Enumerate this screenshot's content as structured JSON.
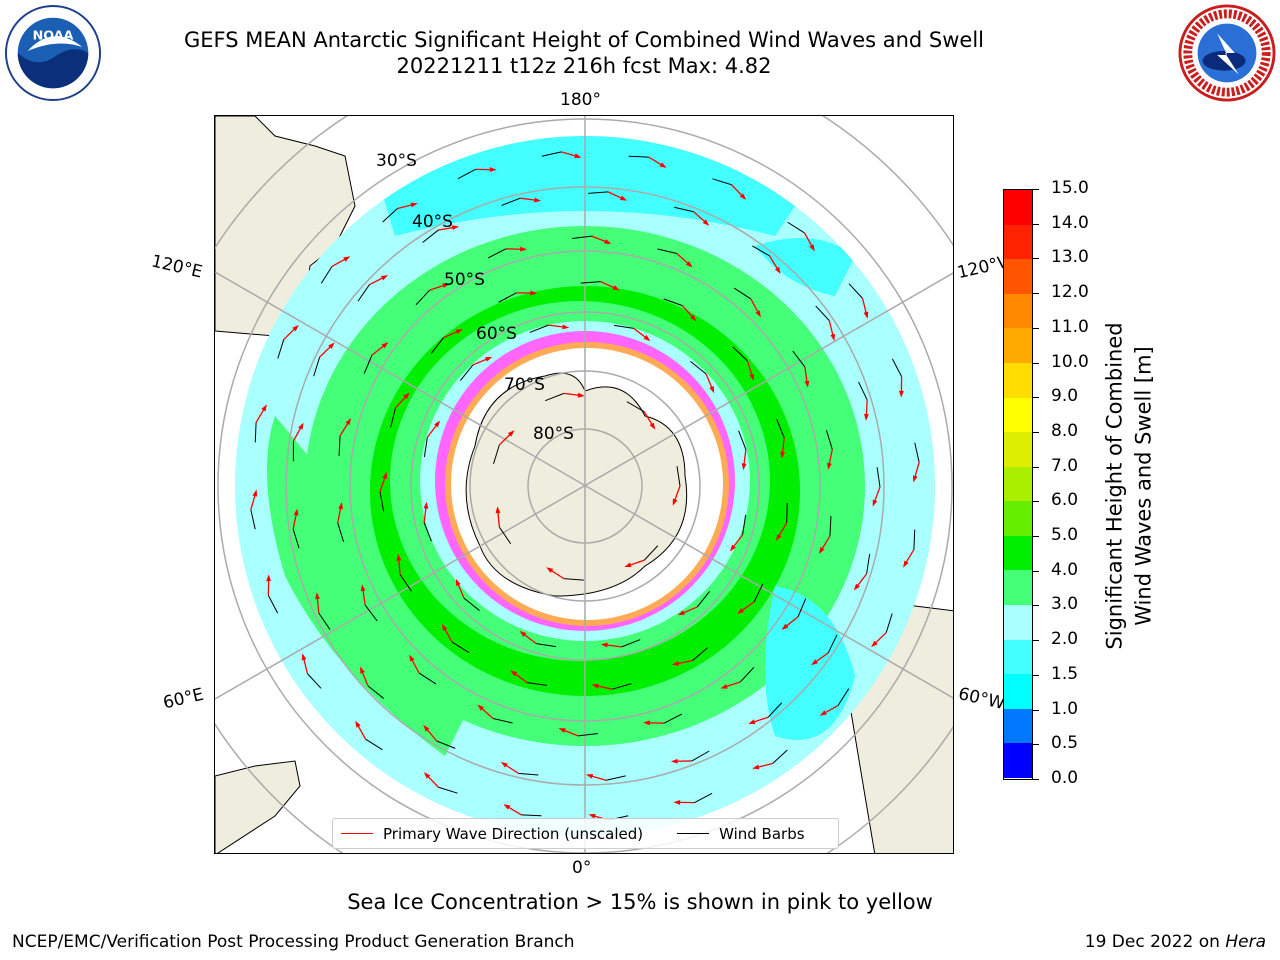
{
  "title_line1": "GEFS MEAN Antarctic Significant Height of Combined Wind Waves and Swell",
  "title_line2": "20221211 t12z 216h fcst   Max: 4.82",
  "logos": {
    "left": "NOAA",
    "right": "NATIONAL WEATHER SERVICE"
  },
  "longitude_labels": {
    "top": "180°",
    "bottom": "0°",
    "upper_left": "120°E",
    "upper_right": "120°W",
    "lower_left": "60°E",
    "lower_right": "60°W"
  },
  "latitude_labels": [
    "30°S",
    "40°S",
    "50°S",
    "60°S",
    "70°S",
    "80°S"
  ],
  "legend": [
    {
      "label": "Primary Wave Direction (unscaled)",
      "color": "#ff0000"
    },
    {
      "label": "Wind Barbs",
      "color": "#000000"
    }
  ],
  "colorbar": {
    "label_line1": "Significant Height of Combined",
    "label_line2": "Wind Waves and Swell [m]",
    "ticks": [
      "0.0",
      "0.5",
      "1.0",
      "1.5",
      "2.0",
      "3.0",
      "4.0",
      "5.0",
      "6.0",
      "7.0",
      "8.0",
      "9.0",
      "10.0",
      "11.0",
      "12.0",
      "13.0",
      "14.0",
      "15.0"
    ],
    "colors": [
      "#0000ff",
      "#0077ff",
      "#00ffff",
      "#44ffff",
      "#aaffff",
      "#44ff77",
      "#00ee00",
      "#66ee00",
      "#aaee00",
      "#ddee00",
      "#ffff00",
      "#ffdd00",
      "#ffaa00",
      "#ff8800",
      "#ff5500",
      "#ff2200",
      "#ff0000"
    ]
  },
  "subtitle": "Sea Ice Concentration > 15% is shown in pink to yellow",
  "footer_left": "NCEP/EMC/Verification Post Processing Product Generation Branch",
  "footer_right_date": "19 Dec 2022 on ",
  "footer_right_host": "Hera",
  "chart_data": {
    "type": "heatmap",
    "title": "GEFS MEAN Antarctic Significant Height of Combined Wind Waves and Swell",
    "projection": "south polar stereographic",
    "max_value": 4.82,
    "units": "m",
    "value_range": [
      0.0,
      15.0
    ],
    "contour_levels": [
      0.0,
      0.5,
      1.0,
      1.5,
      2.0,
      3.0,
      4.0,
      5.0,
      6.0,
      7.0,
      8.0,
      9.0,
      10.0,
      11.0,
      12.0,
      13.0,
      14.0,
      15.0
    ],
    "wave_height_bands": [
      {
        "latitude_band": "30°S-45°S",
        "category": "1.5-3.0"
      },
      {
        "latitude_band": "45°S-60°S",
        "category": "3.0-5.0"
      },
      {
        "latitude_band": "60°S-ice edge",
        "category": "2.0-3.0"
      }
    ],
    "overlays": [
      "Primary Wave Direction (unscaled)",
      "Wind Barbs",
      "Sea Ice Concentration > 15%"
    ]
  }
}
